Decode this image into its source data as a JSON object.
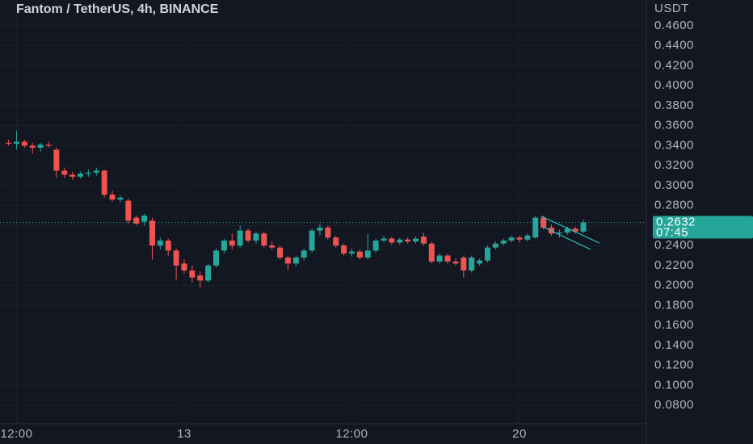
{
  "chart_data": {
    "type": "candlestick",
    "title": "Fantom / TetherUS, 4h, BINANCE",
    "y_axis_label": "USDT",
    "categories": [
      null,
      "12:00",
      null,
      null,
      null,
      null,
      null,
      null,
      null,
      null,
      null,
      null,
      null,
      null,
      null,
      null,
      null,
      null,
      null,
      null,
      null,
      null,
      "13",
      null,
      null,
      null,
      null,
      null,
      null,
      null,
      null,
      null,
      null,
      null,
      null,
      null,
      null,
      null,
      null,
      null,
      null,
      null,
      null,
      "12:00",
      null,
      null,
      null,
      null,
      null,
      null,
      null,
      null,
      null,
      null,
      null,
      null,
      null,
      null,
      null,
      null,
      null,
      null,
      null,
      null,
      "20",
      null,
      null,
      null,
      null,
      null,
      null,
      null,
      null
    ],
    "ohlc": [
      [
        0.343,
        0.346,
        0.34,
        0.342
      ],
      [
        0.342,
        0.355,
        0.336,
        0.344
      ],
      [
        0.344,
        0.346,
        0.338,
        0.34
      ],
      [
        0.34,
        0.343,
        0.332,
        0.338
      ],
      [
        0.338,
        0.343,
        0.334,
        0.341
      ],
      [
        0.341,
        0.344,
        0.338,
        0.34
      ],
      [
        0.336,
        0.338,
        0.308,
        0.315
      ],
      [
        0.315,
        0.318,
        0.308,
        0.311
      ],
      [
        0.311,
        0.314,
        0.306,
        0.309
      ],
      [
        0.309,
        0.314,
        0.307,
        0.312
      ],
      [
        0.312,
        0.316,
        0.309,
        0.313
      ],
      [
        0.313,
        0.318,
        0.31,
        0.315
      ],
      [
        0.315,
        0.316,
        0.288,
        0.291
      ],
      [
        0.291,
        0.295,
        0.284,
        0.286
      ],
      [
        0.286,
        0.29,
        0.283,
        0.288
      ],
      [
        0.285,
        0.287,
        0.262,
        0.265
      ],
      [
        0.268,
        0.27,
        0.26,
        0.262
      ],
      [
        0.264,
        0.272,
        0.26,
        0.27
      ],
      [
        0.265,
        0.268,
        0.226,
        0.24
      ],
      [
        0.24,
        0.248,
        0.236,
        0.245
      ],
      [
        0.245,
        0.247,
        0.23,
        0.235
      ],
      [
        0.235,
        0.237,
        0.205,
        0.22
      ],
      [
        0.222,
        0.226,
        0.212,
        0.215
      ],
      [
        0.215,
        0.22,
        0.203,
        0.208
      ],
      [
        0.21,
        0.214,
        0.198,
        0.205
      ],
      [
        0.205,
        0.222,
        0.203,
        0.22
      ],
      [
        0.22,
        0.237,
        0.218,
        0.235
      ],
      [
        0.235,
        0.247,
        0.232,
        0.245
      ],
      [
        0.245,
        0.252,
        0.236,
        0.24
      ],
      [
        0.24,
        0.26,
        0.238,
        0.255
      ],
      [
        0.255,
        0.257,
        0.243,
        0.245
      ],
      [
        0.245,
        0.254,
        0.242,
        0.252
      ],
      [
        0.252,
        0.254,
        0.238,
        0.24
      ],
      [
        0.24,
        0.244,
        0.236,
        0.238
      ],
      [
        0.238,
        0.24,
        0.226,
        0.228
      ],
      [
        0.228,
        0.23,
        0.215,
        0.222
      ],
      [
        0.222,
        0.23,
        0.219,
        0.228
      ],
      [
        0.228,
        0.237,
        0.225,
        0.235
      ],
      [
        0.235,
        0.257,
        0.233,
        0.255
      ],
      [
        0.255,
        0.262,
        0.25,
        0.258
      ],
      [
        0.258,
        0.26,
        0.246,
        0.248
      ],
      [
        0.248,
        0.25,
        0.238,
        0.24
      ],
      [
        0.24,
        0.242,
        0.23,
        0.232
      ],
      [
        0.232,
        0.237,
        0.229,
        0.234
      ],
      [
        0.234,
        0.236,
        0.226,
        0.228
      ],
      [
        0.228,
        0.252,
        0.226,
        0.235
      ],
      [
        0.235,
        0.247,
        0.233,
        0.245
      ],
      [
        0.245,
        0.25,
        0.243,
        0.247
      ],
      [
        0.247,
        0.249,
        0.241,
        0.243
      ],
      [
        0.243,
        0.248,
        0.241,
        0.246
      ],
      [
        0.246,
        0.248,
        0.242,
        0.244
      ],
      [
        0.244,
        0.249,
        0.242,
        0.247
      ],
      [
        0.249,
        0.253,
        0.24,
        0.242
      ],
      [
        0.242,
        0.244,
        0.222,
        0.224
      ],
      [
        0.224,
        0.232,
        0.222,
        0.23
      ],
      [
        0.23,
        0.232,
        0.222,
        0.224
      ],
      [
        0.224,
        0.227,
        0.22,
        0.222
      ],
      [
        0.228,
        0.23,
        0.208,
        0.215
      ],
      [
        0.215,
        0.23,
        0.213,
        0.228
      ],
      [
        0.222,
        0.227,
        0.22,
        0.225
      ],
      [
        0.225,
        0.24,
        0.223,
        0.238
      ],
      [
        0.238,
        0.244,
        0.236,
        0.242
      ],
      [
        0.242,
        0.247,
        0.24,
        0.245
      ],
      [
        0.245,
        0.25,
        0.243,
        0.248
      ],
      [
        0.248,
        0.25,
        0.243,
        0.246
      ],
      [
        0.246,
        0.252,
        0.244,
        0.25
      ],
      [
        0.248,
        0.27,
        0.247,
        0.268
      ],
      [
        0.268,
        0.27,
        0.256,
        0.258
      ],
      [
        0.258,
        0.261,
        0.25,
        0.252
      ],
      [
        0.252,
        0.256,
        0.248,
        0.253
      ],
      [
        0.253,
        0.259,
        0.251,
        0.257
      ],
      [
        0.257,
        0.259,
        0.252,
        0.254
      ],
      [
        0.254,
        0.266,
        0.252,
        0.2632
      ]
    ],
    "up_color": "#26a69a",
    "down_color": "#ef5350",
    "last_price": 0.2632,
    "countdown": "07:45",
    "ylim": [
      0.0615,
      0.4859
    ],
    "yticks": [
      {
        "value": 0.08,
        "label": "0.0800"
      },
      {
        "value": 0.1,
        "label": "0.1000"
      },
      {
        "value": 0.12,
        "label": "0.1200"
      },
      {
        "value": 0.14,
        "label": "0.1400"
      },
      {
        "value": 0.16,
        "label": "0.1600"
      },
      {
        "value": 0.18,
        "label": "0.1800"
      },
      {
        "value": 0.2,
        "label": "0.2000"
      },
      {
        "value": 0.22,
        "label": "0.2200"
      },
      {
        "value": 0.24,
        "label": "0.2400"
      },
      {
        "value": 0.26,
        "label": "0.2600"
      },
      {
        "value": 0.28,
        "label": "0.2800"
      },
      {
        "value": 0.3,
        "label": "0.3000"
      },
      {
        "value": 0.32,
        "label": "0.3200"
      },
      {
        "value": 0.34,
        "label": "0.3400"
      },
      {
        "value": 0.36,
        "label": "0.3600"
      },
      {
        "value": 0.38,
        "label": "0.3800"
      },
      {
        "value": 0.4,
        "label": "0.4000"
      },
      {
        "value": 0.42,
        "label": "0.4200"
      },
      {
        "value": 0.44,
        "label": "0.4400"
      },
      {
        "value": 0.46,
        "label": "0.4600"
      }
    ],
    "grid": true
  }
}
